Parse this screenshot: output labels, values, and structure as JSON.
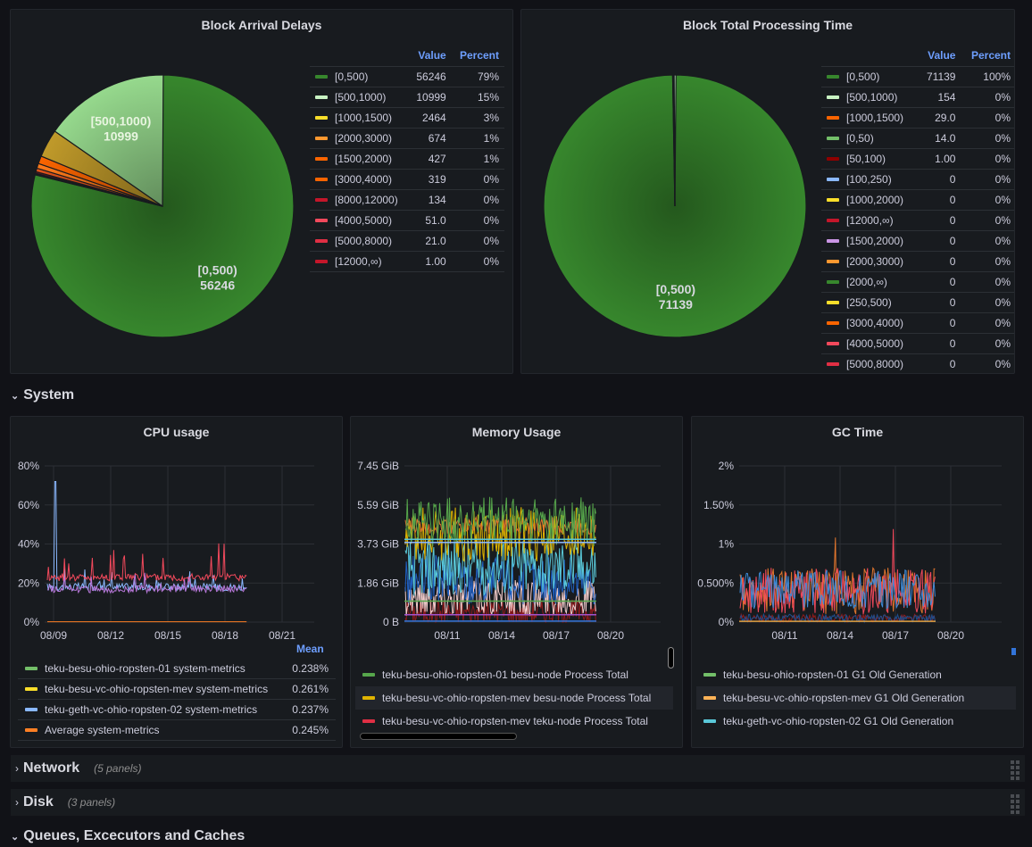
{
  "panels": {
    "arrival": {
      "title": "Block Arrival Delays",
      "col_value": "Value",
      "col_percent": "Percent",
      "pie_labels": [
        {
          "name": "[500,1000)",
          "value": "10999"
        },
        {
          "name": "[0,500)",
          "value": "56246"
        }
      ],
      "rows": [
        {
          "name": "[0,500)",
          "value": "56246",
          "percent": "79%",
          "color": "#37872d"
        },
        {
          "name": "[500,1000)",
          "value": "10999",
          "percent": "15%",
          "color": "#c8f2c2"
        },
        {
          "name": "[1000,1500)",
          "value": "2464",
          "percent": "3%",
          "color": "#fade2a"
        },
        {
          "name": "[2000,3000)",
          "value": "674",
          "percent": "1%",
          "color": "#ff9830"
        },
        {
          "name": "[1500,2000)",
          "value": "427",
          "percent": "1%",
          "color": "#fa6400"
        },
        {
          "name": "[3000,4000)",
          "value": "319",
          "percent": "0%",
          "color": "#fa6400"
        },
        {
          "name": "[8000,12000)",
          "value": "134",
          "percent": "0%",
          "color": "#c4162a"
        },
        {
          "name": "[4000,5000)",
          "value": "51.0",
          "percent": "0%",
          "color": "#f2495c"
        },
        {
          "name": "[5000,8000)",
          "value": "21.0",
          "percent": "0%",
          "color": "#e02f44"
        },
        {
          "name": "[12000,∞)",
          "value": "1.00",
          "percent": "0%",
          "color": "#c4162a"
        }
      ]
    },
    "processing": {
      "title": "Block Total Processing Time",
      "col_value": "Value",
      "col_percent": "Percent",
      "pie_labels": [
        {
          "name": "[0,500)",
          "value": "71139"
        }
      ],
      "rows": [
        {
          "name": "[0,500)",
          "value": "71139",
          "percent": "100%",
          "color": "#37872d"
        },
        {
          "name": "[500,1000)",
          "value": "154",
          "percent": "0%",
          "color": "#c8f2c2"
        },
        {
          "name": "[1000,1500)",
          "value": "29.0",
          "percent": "0%",
          "color": "#fa6400"
        },
        {
          "name": "[0,50)",
          "value": "14.0",
          "percent": "0%",
          "color": "#73bf69"
        },
        {
          "name": "[50,100)",
          "value": "1.00",
          "percent": "0%",
          "color": "#8f0000"
        },
        {
          "name": "[100,250)",
          "value": "0",
          "percent": "0%",
          "color": "#8ab8ff"
        },
        {
          "name": "[1000,2000)",
          "value": "0",
          "percent": "0%",
          "color": "#fade2a"
        },
        {
          "name": "[12000,∞)",
          "value": "0",
          "percent": "0%",
          "color": "#c4162a"
        },
        {
          "name": "[1500,2000)",
          "value": "0",
          "percent": "0%",
          "color": "#ca95e5"
        },
        {
          "name": "[2000,3000)",
          "value": "0",
          "percent": "0%",
          "color": "#ff9830"
        },
        {
          "name": "[2000,∞)",
          "value": "0",
          "percent": "0%",
          "color": "#37872d"
        },
        {
          "name": "[250,500)",
          "value": "0",
          "percent": "0%",
          "color": "#fade2a"
        },
        {
          "name": "[3000,4000)",
          "value": "0",
          "percent": "0%",
          "color": "#fa6400"
        },
        {
          "name": "[4000,5000)",
          "value": "0",
          "percent": "0%",
          "color": "#f2495c"
        },
        {
          "name": "[5000,8000)",
          "value": "0",
          "percent": "0%",
          "color": "#e02f44"
        }
      ]
    },
    "cpu": {
      "title": "CPU usage",
      "mean_label": "Mean",
      "legend": [
        {
          "name": "teku-besu-ohio-ropsten-01 system-metrics",
          "mean": "0.238%",
          "color": "#73bf69"
        },
        {
          "name": "teku-besu-vc-ohio-ropsten-mev system-metrics",
          "mean": "0.261%",
          "color": "#fade2a"
        },
        {
          "name": "teku-geth-vc-ohio-ropsten-02 system-metrics",
          "mean": "0.237%",
          "color": "#8ab8ff"
        },
        {
          "name": "Average system-metrics",
          "mean": "0.245%",
          "color": "#ff7f24"
        }
      ]
    },
    "memory": {
      "title": "Memory Usage",
      "legend": [
        {
          "name": "teku-besu-ohio-ropsten-01 besu-node Process Total",
          "color": "#56a64b"
        },
        {
          "name": "teku-besu-vc-ohio-ropsten-mev besu-node Process Total",
          "color": "#e0b400"
        },
        {
          "name": "teku-besu-vc-ohio-ropsten-mev teku-node Process Total",
          "color": "#e02f44"
        }
      ]
    },
    "gc": {
      "title": "GC Time",
      "legend": [
        {
          "name": "teku-besu-ohio-ropsten-01 G1 Old Generation",
          "color": "#73bf69"
        },
        {
          "name": "teku-besu-vc-ohio-ropsten-mev G1 Old Generation",
          "color": "#ffb357"
        },
        {
          "name": "teku-geth-vc-ohio-ropsten-02 G1 Old Generation",
          "color": "#5ac8d8"
        }
      ]
    }
  },
  "rows": {
    "system": {
      "title": "System"
    },
    "network": {
      "title": "Network",
      "count": "(5 panels)"
    },
    "disk": {
      "title": "Disk",
      "count": "(3 panels)"
    },
    "queues": {
      "title": "Queues, Excecutors and Caches"
    }
  },
  "chart_data": [
    {
      "type": "pie",
      "title": "Block Arrival Delays",
      "categories": [
        "[0,500)",
        "[500,1000)",
        "[1000,1500)",
        "[2000,3000)",
        "[1500,2000)",
        "[3000,4000)",
        "[8000,12000)",
        "[4000,5000)",
        "[5000,8000)",
        "[12000,∞)"
      ],
      "values": [
        56246,
        10999,
        2464,
        674,
        427,
        319,
        134,
        51,
        21,
        1
      ],
      "colors": [
        "#37872d",
        "#96d98d",
        "#c09a2a",
        "#fa6400",
        "#ff7a1a",
        "#e0521a",
        "#8f0f1f",
        "#f2495c",
        "#c4162a",
        "#8f0f1f"
      ]
    },
    {
      "type": "pie",
      "title": "Block Total Processing Time",
      "categories": [
        "[0,500)",
        "[500,1000)",
        "[1000,1500)",
        "[0,50)",
        "[50,100)"
      ],
      "values": [
        71139,
        154,
        29,
        14,
        1
      ],
      "colors": [
        "#37872d",
        "#c8f2c2",
        "#fa6400",
        "#73bf69",
        "#8f0000"
      ]
    },
    {
      "type": "line",
      "title": "CPU usage",
      "x_ticks": [
        "08/09",
        "08/12",
        "08/15",
        "08/18",
        "08/21"
      ],
      "y_ticks": [
        "0%",
        "20%",
        "40%",
        "60%",
        "80%"
      ],
      "ylim": [
        0,
        80
      ],
      "series": [
        {
          "name": "teku-besu-ohio-ropsten-01 system-metrics",
          "typical": 18,
          "color": "#8ab8ff"
        },
        {
          "name": "teku-besu-vc-ohio-ropsten-mev system-metrics",
          "typical": 23,
          "color": "#f2495c"
        },
        {
          "name": "teku-geth-vc-ohio-ropsten-02 system-metrics",
          "typical": 17,
          "color": "#b877d9"
        },
        {
          "name": "Average system-metrics",
          "typical": 0.2,
          "color": "#ff7f24"
        }
      ]
    },
    {
      "type": "line",
      "title": "Memory Usage",
      "x_ticks": [
        "08/11",
        "08/14",
        "08/17",
        "08/20"
      ],
      "y_ticks": [
        "0 B",
        "1.86 GiB",
        "3.73 GiB",
        "5.59 GiB",
        "7.45 GiB"
      ],
      "ylim": [
        0,
        7.45
      ]
    },
    {
      "type": "line",
      "title": "GC Time",
      "x_ticks": [
        "08/11",
        "08/14",
        "08/17",
        "08/20"
      ],
      "y_ticks": [
        "0%",
        "0.500%",
        "1%",
        "1.50%",
        "2%"
      ],
      "ylim": [
        0,
        2
      ]
    }
  ]
}
